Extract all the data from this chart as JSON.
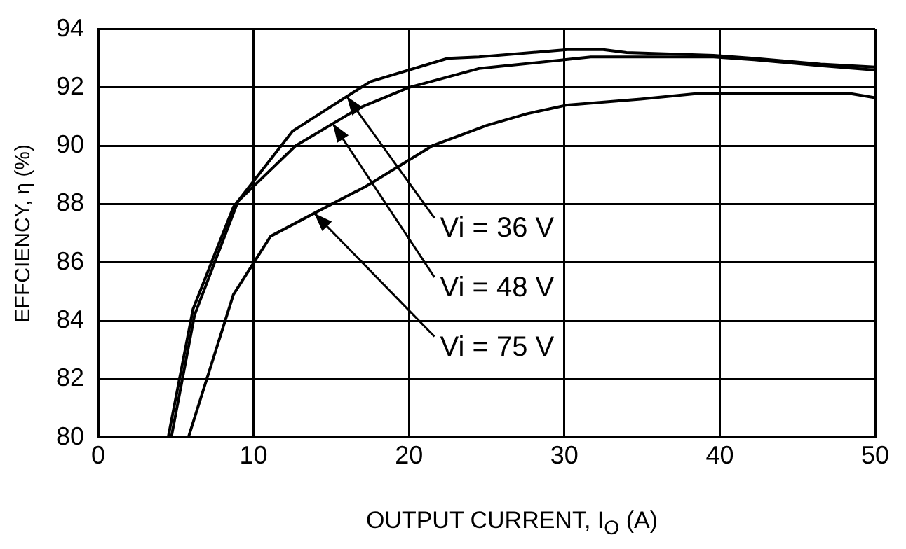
{
  "chart_data": {
    "type": "line",
    "xlabel": "OUTPUT CURRENT, I$_{O}$ (A)",
    "ylabel": "EFFCIENCY, η (%)",
    "xlim": [
      0,
      50
    ],
    "xticks": [
      0,
      10,
      20,
      30,
      40,
      50
    ],
    "ylim": [
      80,
      94
    ],
    "yticks": [
      80,
      82,
      84,
      86,
      88,
      90,
      92,
      94
    ],
    "grid": true,
    "legend": false,
    "marker": "none",
    "line_style": "solid",
    "series": [
      {
        "color": "#000000",
        "x": [
          4.5,
          6.1,
          8.7,
          12.5,
          17.5,
          22.5,
          24.5,
          30.2,
          32.5,
          34,
          39.6,
          42.2,
          46.5,
          50
        ],
        "values": [
          80,
          84.4,
          87.9,
          90.5,
          92.2,
          93,
          93.05,
          93.3,
          93.3,
          93.2,
          93.1,
          93,
          92.8,
          92.7
        ]
      },
      {
        "color": "#000000",
        "x": [
          4.7,
          6.2,
          9,
          12.7,
          16.8,
          20,
          24.5,
          30,
          31.7,
          39.6,
          42.2,
          46.5,
          50
        ],
        "values": [
          80,
          84.2,
          88.1,
          90,
          91.3,
          92,
          92.65,
          92.95,
          93.05,
          93.05,
          92.95,
          92.75,
          92.6
        ]
      },
      {
        "color": "#000000",
        "x": [
          5.8,
          8.7,
          11.1,
          14.3,
          17.2,
          21.5,
          25,
          27.6,
          30.2,
          34.9,
          38.7,
          48.3,
          50
        ],
        "values": [
          80,
          84.9,
          86.9,
          87.8,
          88.6,
          90,
          90.7,
          91.1,
          91.4,
          91.6,
          91.8,
          91.8,
          91.65
        ]
      }
    ],
    "annotations": [
      {
        "text": "Vi = 36 V",
        "x": 16,
        "y": 91.69
      },
      {
        "text": "Vi = 48 V",
        "x": 15.1,
        "y": 90.76
      },
      {
        "text": "Vi = 75 V",
        "x": 13.9,
        "y": 87.69
      }
    ]
  }
}
